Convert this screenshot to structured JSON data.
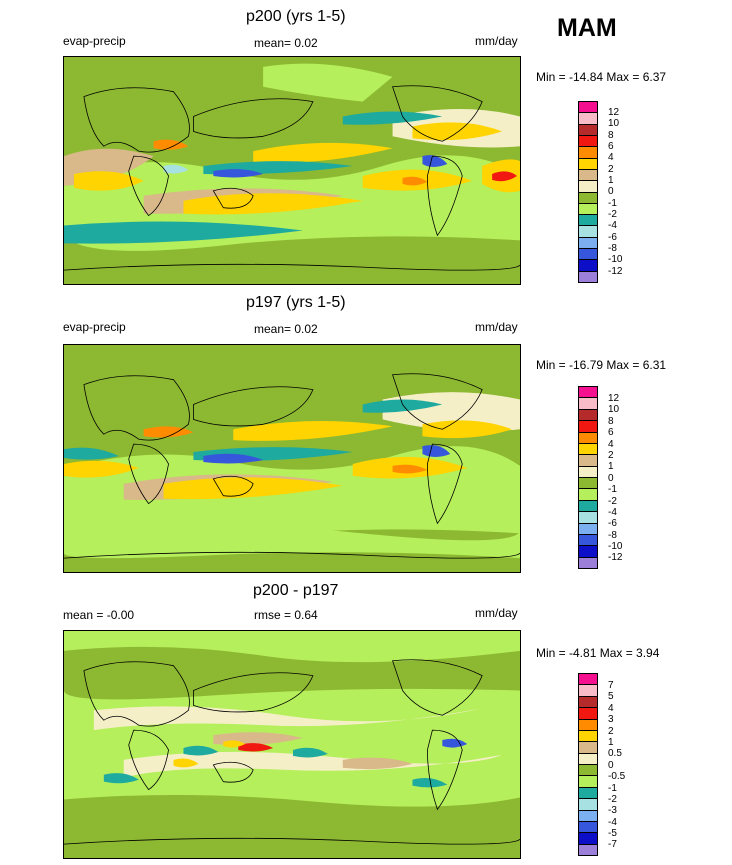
{
  "season": "MAM",
  "panels": [
    {
      "title": "p200 (yrs 1-5)",
      "left_label": "evap-precip",
      "center_label": "mean=  0.02",
      "units": "mm/day",
      "minmax": "Min = -14.84 Max =   6.37",
      "legend": [
        "12",
        "10",
        "8",
        "6",
        "4",
        "2",
        "1",
        "0",
        "-1",
        "-2",
        "-4",
        "-6",
        "-8",
        "-10",
        "-12"
      ]
    },
    {
      "title": "p197 (yrs 1-5)",
      "left_label": "evap-precip",
      "center_label": "mean=  0.02",
      "units": "mm/day",
      "minmax": "Min = -16.79 Max =   6.31",
      "legend": [
        "12",
        "10",
        "8",
        "6",
        "4",
        "2",
        "1",
        "0",
        "-1",
        "-2",
        "-4",
        "-6",
        "-8",
        "-10",
        "-12"
      ]
    },
    {
      "title": "p200 - p197",
      "left_label": "mean =  -0.00",
      "center_label": "rmse =  0.64",
      "units": "mm/day",
      "minmax": "Min =  -4.81 Max =   3.94",
      "legend": [
        "7",
        "5",
        "4",
        "3",
        "2",
        "1",
        "0.5",
        "0",
        "-0.5",
        "-1",
        "-2",
        "-3",
        "-4",
        "-5",
        "-7"
      ]
    }
  ],
  "colors": {
    "scale": [
      "#f5108f",
      "#f8bcc8",
      "#b52a2a",
      "#f01810",
      "#ff8c00",
      "#ffd400",
      "#d9b889",
      "#f5efc8",
      "#8db832",
      "#b5ef5c",
      "#1eaa9e",
      "#a8e1e1",
      "#7bafef",
      "#3657db",
      "#0d0fc8",
      "#9b7fd9"
    ],
    "ocean_land": "#8db832"
  }
}
